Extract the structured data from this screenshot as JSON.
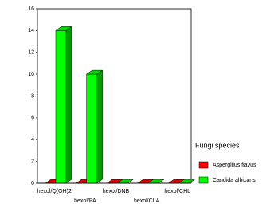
{
  "chart_data": {
    "type": "bar3d",
    "categories": [
      "hexol/Q(OH)2",
      "hexol/PA",
      "hexol/DNB",
      "hexol/CLA",
      "hexol/CHL"
    ],
    "series": [
      {
        "name": "Aspergillus flavus",
        "color": "#ff0000",
        "values": [
          0,
          0,
          0,
          0,
          0
        ]
      },
      {
        "name": "Candida albicans",
        "color": "#00ff00",
        "values": [
          14,
          10,
          0,
          0,
          0
        ]
      }
    ],
    "ylim": [
      0,
      16
    ],
    "yticks": [
      0,
      2,
      4,
      6,
      8,
      10,
      12,
      14,
      16
    ],
    "legend_title": "Fungi species"
  }
}
